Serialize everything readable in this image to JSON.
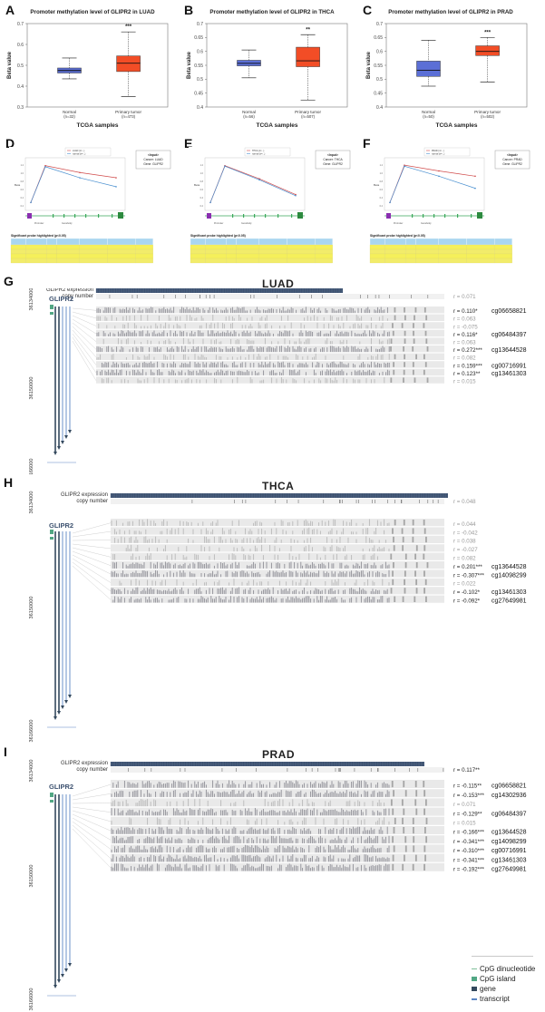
{
  "panels": {
    "A": "A",
    "B": "B",
    "C": "C",
    "D": "D",
    "E": "E",
    "F": "F",
    "G": "G",
    "H": "H",
    "I": "I"
  },
  "chart_data": [
    {
      "type": "box",
      "id": "A",
      "title": "Promoter methylation level of GLIPR2 in LUAD",
      "xlabel": "TCGA samples",
      "ylabel": "Beta value",
      "ylim": [
        0.3,
        0.7
      ],
      "yticks": [
        "0.3",
        "0.4",
        "0.5",
        "0.6",
        "0.7"
      ],
      "significance": "***",
      "groups": [
        {
          "name": "Normal",
          "n": "(n=32)",
          "min": 0.435,
          "q1": 0.463,
          "median": 0.475,
          "q3": 0.487,
          "max": 0.535,
          "color": "#5b6fd6"
        },
        {
          "name": "Primary tumor",
          "n": "(n=473)",
          "min": 0.35,
          "q1": 0.47,
          "median": 0.51,
          "q3": 0.545,
          "max": 0.66,
          "color": "#f24d26"
        }
      ]
    },
    {
      "type": "box",
      "id": "B",
      "title": "Promoter methylation level of GLIPR2 in THCA",
      "xlabel": "TCGA samples",
      "ylabel": "Beta value",
      "ylim": [
        0.4,
        0.7
      ],
      "yticks": [
        "0.4",
        "0.45",
        "0.5",
        "0.55",
        "0.6",
        "0.65",
        "0.7"
      ],
      "significance": "**",
      "groups": [
        {
          "name": "Normal",
          "n": "(n=56)",
          "min": 0.505,
          "q1": 0.548,
          "median": 0.557,
          "q3": 0.568,
          "max": 0.605,
          "color": "#5b6fd6"
        },
        {
          "name": "Primary tumor",
          "n": "(n=507)",
          "min": 0.425,
          "q1": 0.545,
          "median": 0.566,
          "q3": 0.615,
          "max": 0.66,
          "color": "#f24d26"
        }
      ]
    },
    {
      "type": "box",
      "id": "C",
      "title": "Promoter methylation level of GLIPR2 in PRAD",
      "xlabel": "TCGA samples",
      "ylabel": "Beta value",
      "ylim": [
        0.4,
        0.7
      ],
      "yticks": [
        "0.4",
        "0.45",
        "0.5",
        "0.55",
        "0.6",
        "0.65",
        "0.7"
      ],
      "significance": "***",
      "groups": [
        {
          "name": "Normal",
          "n": "(n=50)",
          "min": 0.475,
          "q1": 0.51,
          "median": 0.532,
          "q3": 0.565,
          "max": 0.64,
          "color": "#5b6fd6"
        },
        {
          "name": "Primary tumor",
          "n": "(n=502)",
          "min": 0.49,
          "q1": 0.585,
          "median": 0.6,
          "q3": 0.62,
          "max": 0.65,
          "color": "#f24d26"
        }
      ]
    }
  ],
  "mini_panels": [
    {
      "id": "D",
      "gene": "GLIPR2",
      "inset": [
        "<Input>",
        "Cancer: LUAD",
        "Gene: GLIPR2"
      ],
      "table_title": "Significant probe highlighted (p<0.05)",
      "legend": [
        "LUAD (n=...)",
        "normal (n=...)"
      ],
      "lines": [
        {
          "color": "#d04a4a",
          "values": [
            0.15,
            0.85,
            0.72,
            0.62
          ]
        },
        {
          "color": "#4a90d0",
          "values": [
            0.15,
            0.83,
            0.62,
            0.45
          ]
        }
      ]
    },
    {
      "id": "E",
      "gene": "GLIPR2",
      "inset": [
        "<Input>",
        "Cancer: THCA",
        "Gene: GLIPR2"
      ],
      "table_title": "Significant probe highlighted (p<0.05)",
      "legend": [
        "THCA (n=...)",
        "normal (n=...)"
      ],
      "lines": [
        {
          "color": "#d04a4a",
          "values": [
            0.15,
            0.85,
            0.6,
            0.3
          ]
        },
        {
          "color": "#4a90d0",
          "values": [
            0.15,
            0.84,
            0.58,
            0.28
          ]
        }
      ]
    },
    {
      "id": "F",
      "gene": "GLIPR2",
      "inset": [
        "<Input>",
        "Cancer: PRAD",
        "Gene: GLIPR2"
      ],
      "table_title": "Significant probe highlighted (p<0.05)",
      "legend": [
        "PRAD (n=...)",
        "normal (n=...)"
      ],
      "lines": [
        {
          "color": "#d04a4a",
          "values": [
            0.15,
            0.86,
            0.75,
            0.65
          ]
        },
        {
          "color": "#4a90d0",
          "values": [
            0.15,
            0.84,
            0.65,
            0.42
          ]
        }
      ]
    }
  ],
  "tracks": [
    {
      "id": "G",
      "cancer": "LUAD",
      "expression_label": "GLIPR2 expression",
      "copy_label": "copy number",
      "gene_label": "GLIPR2",
      "copy_r": "r = 0.071",
      "yticks": [
        "36134000",
        "36150000",
        "36166000"
      ],
      "rows": [
        {
          "r": "r = 0.110*",
          "probe": "cg06658821",
          "gray": false
        },
        {
          "r": "r = 0.063",
          "probe": "",
          "gray": true
        },
        {
          "r": "r = -0.075",
          "probe": "",
          "gray": true
        },
        {
          "r": "r = 0.116*",
          "probe": "cg06484397",
          "gray": false
        },
        {
          "r": "r = 0.063",
          "probe": "",
          "gray": true
        },
        {
          "r": "r = 0.272***",
          "probe": "cg13644528",
          "gray": false
        },
        {
          "r": "r = 0.082",
          "probe": "",
          "gray": true
        },
        {
          "r": "r = 0.159***",
          "probe": "cg00716991",
          "gray": false
        },
        {
          "r": "r = 0.123**",
          "probe": "cg13461303",
          "gray": false
        },
        {
          "r": "r = 0.015",
          "probe": "",
          "gray": true
        }
      ]
    },
    {
      "id": "H",
      "cancer": "THCA",
      "expression_label": "GLIPR2 expression",
      "copy_label": "copy number",
      "gene_label": "GLIPR2",
      "copy_r": "r = 0.048",
      "yticks": [
        "36134000",
        "36150000",
        "36166000"
      ],
      "rows": [
        {
          "r": "r = 0.044",
          "probe": "",
          "gray": true
        },
        {
          "r": "r = -0.042",
          "probe": "",
          "gray": true
        },
        {
          "r": "r = 0.038",
          "probe": "",
          "gray": true
        },
        {
          "r": "r = -0.027",
          "probe": "",
          "gray": true
        },
        {
          "r": "r = 0.082",
          "probe": "",
          "gray": true
        },
        {
          "r": "r = 0.201***",
          "probe": "cg13644528",
          "gray": false
        },
        {
          "r": "r = -0.307***",
          "probe": "cg14098299",
          "gray": false
        },
        {
          "r": "r = 0.022",
          "probe": "",
          "gray": true
        },
        {
          "r": "r = -0.102*",
          "probe": "cg13461303",
          "gray": false
        },
        {
          "r": "r = -0.092*",
          "probe": "cg27649981",
          "gray": false
        }
      ]
    },
    {
      "id": "I",
      "cancer": "PRAD",
      "expression_label": "GLIPR2 expression",
      "copy_label": "copy number",
      "gene_label": "GLIPR2",
      "copy_r": "r = 0.117**",
      "yticks": [
        "36134000",
        "36150000",
        "36166000"
      ],
      "rows": [
        {
          "r": "r = -0.115**",
          "probe": "cg06658821",
          "gray": false
        },
        {
          "r": "r = -0.153***",
          "probe": "cg14302936",
          "gray": false
        },
        {
          "r": "r = 0.071",
          "probe": "",
          "gray": true
        },
        {
          "r": "r = -0.129**",
          "probe": "cg06484397",
          "gray": false
        },
        {
          "r": "r = 0.015",
          "probe": "",
          "gray": true
        },
        {
          "r": "r = -0.166***",
          "probe": "cg13644528",
          "gray": false
        },
        {
          "r": "r = -0.341***",
          "probe": "cg14098299",
          "gray": false
        },
        {
          "r": "r = -0.310***",
          "probe": "cg00716991",
          "gray": false
        },
        {
          "r": "r = -0.341***",
          "probe": "cg13461303",
          "gray": false
        },
        {
          "r": "r = -0.192***",
          "probe": "cg27649981",
          "gray": false
        }
      ]
    }
  ],
  "legend": {
    "items": [
      {
        "label": "CpG dinucleotide",
        "color": "#7fbf9a"
      },
      {
        "label": "CpG island",
        "color": "#52a784"
      },
      {
        "label": "gene",
        "color": "#34495e"
      },
      {
        "label": "transcript",
        "color": "#5b86c4"
      }
    ]
  }
}
